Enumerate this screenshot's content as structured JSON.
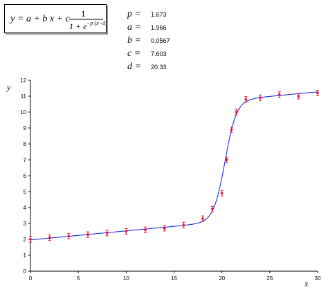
{
  "formula": {
    "lhs": "y",
    "rhs_lead": "= a + b x + c",
    "numerator": "1",
    "denominator_base": "1 + e",
    "exponent": "−p (x−d)"
  },
  "parameters": [
    {
      "symbol": "p",
      "relation": "=",
      "value": "1.673"
    },
    {
      "symbol": "a",
      "relation": "=",
      "value": "1.966"
    },
    {
      "symbol": "b",
      "relation": "=",
      "value": "0.0567"
    },
    {
      "symbol": "c",
      "relation": "=",
      "value": "7.603"
    },
    {
      "symbol": "d",
      "relation": "=",
      "value": "20.33"
    }
  ],
  "chart_data": {
    "type": "scatter",
    "xlabel": "x",
    "ylabel": "y",
    "xlim": [
      0,
      30
    ],
    "ylim": [
      0,
      12
    ],
    "x_ticks": [
      "0",
      "5",
      "10",
      "15",
      "20",
      "25",
      "30"
    ],
    "y_ticks": [
      "0",
      "1",
      "2",
      "3",
      "4",
      "5",
      "6",
      "7",
      "8",
      "9",
      "10",
      "11",
      "12"
    ],
    "grid": false,
    "series": [
      {
        "style": "markers",
        "color": "#e8143c",
        "x": [
          0,
          2,
          4,
          6,
          8,
          10,
          12,
          14,
          16,
          18,
          19,
          20,
          20.5,
          21,
          21.5,
          22.5,
          24,
          26,
          28,
          30
        ],
        "y": [
          2.0,
          2.1,
          2.2,
          2.3,
          2.4,
          2.5,
          2.6,
          2.7,
          2.9,
          3.3,
          3.9,
          4.9,
          7.0,
          8.9,
          10.0,
          10.8,
          10.9,
          11.1,
          11.0,
          11.2
        ]
      },
      {
        "style": "line",
        "color": "#1a2fd0",
        "model": {
          "p": 1.673,
          "a": 1.966,
          "b": 0.0567,
          "c": 7.603,
          "d": 20.33
        }
      }
    ]
  }
}
